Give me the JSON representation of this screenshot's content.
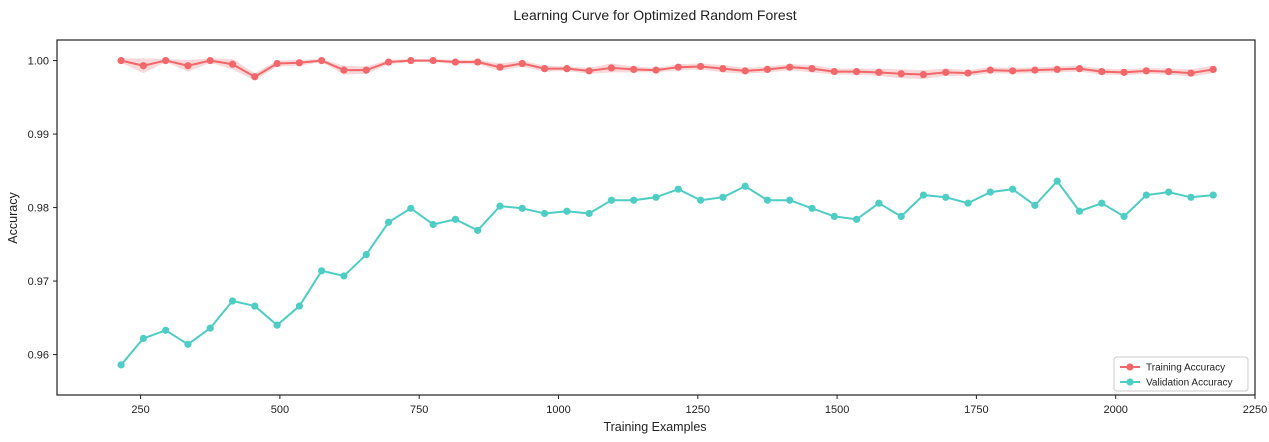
{
  "chart_data": {
    "type": "line",
    "title": "Learning Curve for Optimized Random Forest",
    "xlabel": "Training Examples",
    "ylabel": "Accuracy",
    "xlim": [
      100,
      2250
    ],
    "ylim": [
      0.9545,
      1.0028
    ],
    "x_ticks": [
      250,
      500,
      750,
      1000,
      1250,
      1500,
      1750,
      2000,
      2250
    ],
    "y_ticks": [
      0.96,
      0.97,
      0.98,
      0.99,
      1.0
    ],
    "y_tick_labels": [
      "0.96",
      "0.97",
      "0.98",
      "0.99",
      "1.00"
    ],
    "grid": false,
    "legend_position": "lower-right",
    "x": [
      215,
      255,
      295,
      335,
      375,
      415,
      455,
      495,
      535,
      575,
      615,
      655,
      695,
      735,
      775,
      815,
      855,
      895,
      935,
      975,
      1015,
      1055,
      1095,
      1135,
      1175,
      1215,
      1255,
      1295,
      1335,
      1375,
      1415,
      1455,
      1495,
      1535,
      1575,
      1615,
      1655,
      1695,
      1735,
      1775,
      1815,
      1855,
      1895,
      1935,
      1975,
      2015,
      2055,
      2095,
      2135,
      2175
    ],
    "series": [
      {
        "name": "Training Accuracy",
        "color": "#f2676a",
        "band_color": "#f6b6b8",
        "values": [
          1.0,
          0.9993,
          1.0,
          0.9993,
          1.0,
          0.9995,
          0.9978,
          0.9996,
          0.9997,
          1.0,
          0.9987,
          0.9987,
          0.9998,
          1.0,
          1.0,
          0.9998,
          0.9998,
          0.9991,
          0.9996,
          0.9989,
          0.9989,
          0.9986,
          0.999,
          0.9988,
          0.9987,
          0.9991,
          0.9992,
          0.9989,
          0.9986,
          0.9988,
          0.9991,
          0.9989,
          0.9985,
          0.9985,
          0.9984,
          0.9982,
          0.9981,
          0.9984,
          0.9983,
          0.9987,
          0.9986,
          0.9987,
          0.9988,
          0.9989,
          0.9985,
          0.9984,
          0.9986,
          0.9985,
          0.9983,
          0.9988
        ],
        "band": [
          0.0003,
          0.001,
          0.0002,
          0.0008,
          0.0003,
          0.0007,
          0.0005,
          0.0004,
          0.0004,
          0.0002,
          0.0006,
          0.0005,
          0.0003,
          0.0002,
          0.0002,
          0.0003,
          0.0003,
          0.0005,
          0.0004,
          0.0004,
          0.0003,
          0.0004,
          0.0006,
          0.0004,
          0.0003,
          0.0004,
          0.0004,
          0.0005,
          0.0004,
          0.0004,
          0.0004,
          0.0005,
          0.0004,
          0.0004,
          0.0005,
          0.0006,
          0.0006,
          0.0005,
          0.0004,
          0.0004,
          0.0004,
          0.0004,
          0.0004,
          0.0004,
          0.0004,
          0.0004,
          0.0004,
          0.0004,
          0.0005,
          0.0005
        ]
      },
      {
        "name": "Validation Accuracy",
        "color": "#4ecdc4",
        "values": [
          0.9586,
          0.9622,
          0.9633,
          0.9614,
          0.9636,
          0.9673,
          0.9666,
          0.964,
          0.9666,
          0.9714,
          0.9707,
          0.9736,
          0.978,
          0.9799,
          0.9777,
          0.9784,
          0.9769,
          0.9802,
          0.9799,
          0.9792,
          0.9795,
          0.9792,
          0.981,
          0.981,
          0.9814,
          0.9825,
          0.981,
          0.9814,
          0.9829,
          0.981,
          0.981,
          0.9799,
          0.9788,
          0.9784,
          0.9806,
          0.9788,
          0.9817,
          0.9814,
          0.9806,
          0.9821,
          0.9825,
          0.9803,
          0.9836,
          0.9795,
          0.9806,
          0.9788,
          0.9817,
          0.9821,
          0.9814,
          0.9817
        ]
      }
    ]
  }
}
